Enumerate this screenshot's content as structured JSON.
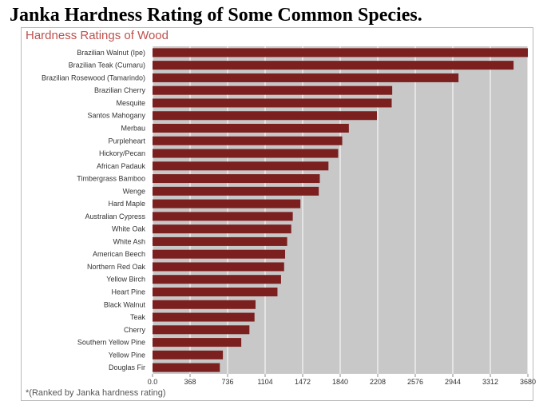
{
  "page_title": "Janka Hardness Rating of Some Common Species.",
  "chart_data": {
    "type": "bar",
    "orientation": "horizontal",
    "title": "Hardness Ratings of Wood",
    "footnote": "*(Ranked by Janka hardness rating)",
    "xlabel": "",
    "ylabel": "",
    "xlim": [
      0,
      3680
    ],
    "x_ticks": [
      "0.0",
      "368",
      "736",
      "1104",
      "1472",
      "1840",
      "2208",
      "2576",
      "2944",
      "3312",
      "3680"
    ],
    "grid": "vertical",
    "bar_color": "#7b1f1f",
    "plot_background": "#c8c8c8",
    "categories": [
      "Brazilian Walnut (Ipe)",
      "Brazilian Teak (Cumaru)",
      "Brazilian Rosewood (Tamarindo)",
      "Brazilian Cherry",
      "Mesquite",
      "Santos Mahogany",
      "Merbau",
      "Purpleheart",
      "Hickory/Pecan",
      "African Padauk",
      "Timbergrass Bamboo",
      "Wenge",
      "Hard Maple",
      "Australian Cypress",
      "White Oak",
      "White Ash",
      "American Beech",
      "Northern Red Oak",
      "Yellow Birch",
      "Heart Pine",
      "Black Walnut",
      "Teak",
      "Cherry",
      "Southern Yellow Pine",
      "Yellow Pine",
      "Douglas Fir"
    ],
    "values": [
      3680,
      3540,
      3000,
      2350,
      2345,
      2200,
      1925,
      1860,
      1820,
      1725,
      1640,
      1630,
      1450,
      1375,
      1360,
      1320,
      1300,
      1290,
      1260,
      1225,
      1010,
      1000,
      950,
      870,
      690,
      660
    ]
  }
}
